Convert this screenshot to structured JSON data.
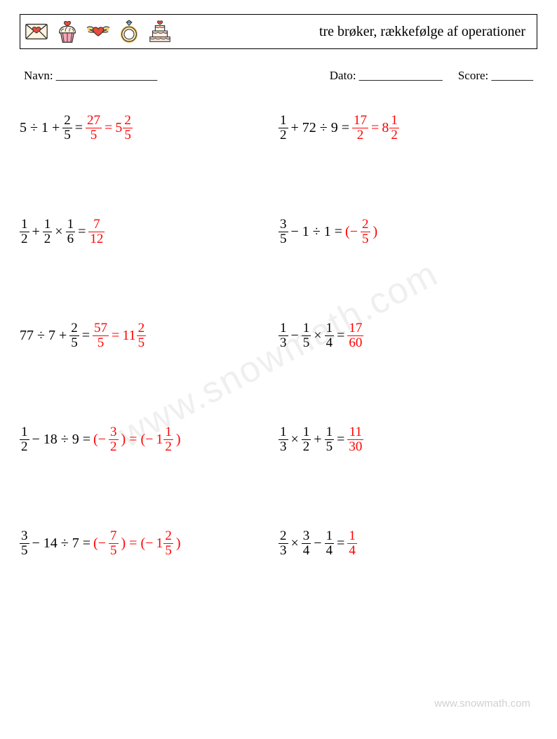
{
  "header": {
    "title": "tre brøker, rækkefølge af operationer"
  },
  "info": {
    "name_label": "Navn: _________________",
    "date_label": "Dato: ______________",
    "score_label": "Score: _______"
  },
  "watermark": "www.snowmath.com",
  "footer": "www.snowmath.com",
  "colors": {
    "answer": "#ff0000",
    "text": "#000000",
    "icon_pink": "#f7a6b8",
    "icon_red": "#e74c3c",
    "icon_yellow": "#f4d47c",
    "icon_cream": "#fff4e0",
    "icon_blue": "#7fb8d4",
    "icon_outline": "#333333"
  },
  "exercises": [
    {
      "tokens": [
        {
          "t": "txt",
          "v": "5 ÷ 1 + "
        },
        {
          "t": "frac",
          "n": "2",
          "d": "5"
        },
        {
          "t": "txt",
          "v": " = "
        },
        {
          "t": "frac",
          "n": "27",
          "d": "5",
          "ans": true
        },
        {
          "t": "txt",
          "v": " = ",
          "ans": true
        },
        {
          "t": "mixed",
          "w": "5",
          "n": "2",
          "d": "5",
          "ans": true
        }
      ]
    },
    {
      "tokens": [
        {
          "t": "frac",
          "n": "1",
          "d": "2"
        },
        {
          "t": "txt",
          "v": " + 72 ÷ 9 = "
        },
        {
          "t": "frac",
          "n": "17",
          "d": "2",
          "ans": true
        },
        {
          "t": "txt",
          "v": " = ",
          "ans": true
        },
        {
          "t": "mixed",
          "w": "8",
          "n": "1",
          "d": "2",
          "ans": true
        }
      ]
    },
    {
      "tokens": [
        {
          "t": "frac",
          "n": "1",
          "d": "2"
        },
        {
          "t": "txt",
          "v": " + "
        },
        {
          "t": "frac",
          "n": "1",
          "d": "2"
        },
        {
          "t": "txt",
          "v": " × "
        },
        {
          "t": "frac",
          "n": "1",
          "d": "6"
        },
        {
          "t": "txt",
          "v": " = "
        },
        {
          "t": "frac",
          "n": "7",
          "d": "12",
          "ans": true
        }
      ]
    },
    {
      "tokens": [
        {
          "t": "frac",
          "n": "3",
          "d": "5"
        },
        {
          "t": "txt",
          "v": " − 1 ÷ 1 = "
        },
        {
          "t": "txt",
          "v": "(−",
          "ans": true
        },
        {
          "t": "frac",
          "n": "2",
          "d": "5",
          "ans": true
        },
        {
          "t": "txt",
          "v": ")",
          "ans": true
        }
      ]
    },
    {
      "tokens": [
        {
          "t": "txt",
          "v": "77 ÷ 7 + "
        },
        {
          "t": "frac",
          "n": "2",
          "d": "5"
        },
        {
          "t": "txt",
          "v": " = "
        },
        {
          "t": "frac",
          "n": "57",
          "d": "5",
          "ans": true
        },
        {
          "t": "txt",
          "v": " = ",
          "ans": true
        },
        {
          "t": "mixed",
          "w": "11",
          "n": "2",
          "d": "5",
          "ans": true
        }
      ]
    },
    {
      "tokens": [
        {
          "t": "frac",
          "n": "1",
          "d": "3"
        },
        {
          "t": "txt",
          "v": " − "
        },
        {
          "t": "frac",
          "n": "1",
          "d": "5"
        },
        {
          "t": "txt",
          "v": " × "
        },
        {
          "t": "frac",
          "n": "1",
          "d": "4"
        },
        {
          "t": "txt",
          "v": " = "
        },
        {
          "t": "frac",
          "n": "17",
          "d": "60",
          "ans": true
        }
      ]
    },
    {
      "tokens": [
        {
          "t": "frac",
          "n": "1",
          "d": "2"
        },
        {
          "t": "txt",
          "v": " − 18 ÷ 9 = "
        },
        {
          "t": "txt",
          "v": "(−",
          "ans": true
        },
        {
          "t": "frac",
          "n": "3",
          "d": "2",
          "ans": true
        },
        {
          "t": "txt",
          "v": ") = (−",
          "ans": true
        },
        {
          "t": "mixed",
          "w": "1",
          "n": "1",
          "d": "2",
          "ans": true
        },
        {
          "t": "txt",
          "v": ")",
          "ans": true
        }
      ]
    },
    {
      "tokens": [
        {
          "t": "frac",
          "n": "1",
          "d": "3"
        },
        {
          "t": "txt",
          "v": " × "
        },
        {
          "t": "frac",
          "n": "1",
          "d": "2"
        },
        {
          "t": "txt",
          "v": " + "
        },
        {
          "t": "frac",
          "n": "1",
          "d": "5"
        },
        {
          "t": "txt",
          "v": " = "
        },
        {
          "t": "frac",
          "n": "11",
          "d": "30",
          "ans": true
        }
      ]
    },
    {
      "tokens": [
        {
          "t": "frac",
          "n": "3",
          "d": "5"
        },
        {
          "t": "txt",
          "v": " − 14 ÷ 7 = "
        },
        {
          "t": "txt",
          "v": "(−",
          "ans": true
        },
        {
          "t": "frac",
          "n": "7",
          "d": "5",
          "ans": true
        },
        {
          "t": "txt",
          "v": ") = (−",
          "ans": true
        },
        {
          "t": "mixed",
          "w": "1",
          "n": "2",
          "d": "5",
          "ans": true
        },
        {
          "t": "txt",
          "v": ")",
          "ans": true
        }
      ]
    },
    {
      "tokens": [
        {
          "t": "frac",
          "n": "2",
          "d": "3"
        },
        {
          "t": "txt",
          "v": " × "
        },
        {
          "t": "frac",
          "n": "3",
          "d": "4"
        },
        {
          "t": "txt",
          "v": " − "
        },
        {
          "t": "frac",
          "n": "1",
          "d": "4"
        },
        {
          "t": "txt",
          "v": " = "
        },
        {
          "t": "frac",
          "n": "1",
          "d": "4",
          "ans": true
        }
      ]
    }
  ]
}
